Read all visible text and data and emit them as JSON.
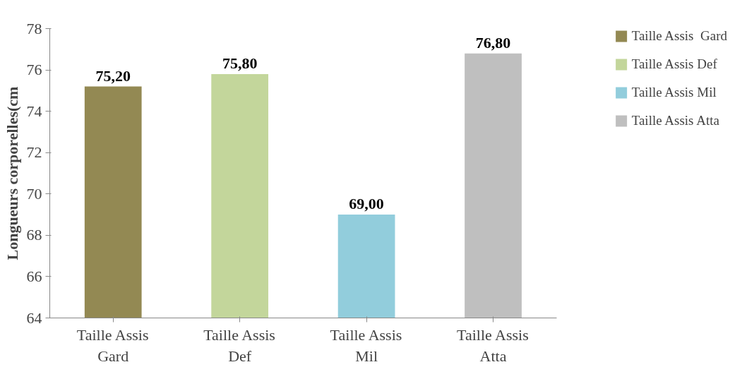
{
  "chart_data": {
    "type": "bar",
    "ylabel": "Longueurs corporelles(cm",
    "categories": [
      "Taille Assis Gard",
      "Taille Assis Def",
      "Taille Assis Mil",
      "Taille Assis Atta"
    ],
    "series": [
      {
        "name": "Taille Assis  Gard",
        "color": "#938953",
        "values": [
          75.2,
          null,
          null,
          null
        ]
      },
      {
        "name": "Taille Assis Def",
        "color": "#c3d69b",
        "values": [
          null,
          75.8,
          null,
          null
        ]
      },
      {
        "name": "Taille Assis Mil",
        "color": "#92cddc",
        "values": [
          null,
          null,
          69.0,
          null
        ]
      },
      {
        "name": "Taille Assis Atta",
        "color": "#bfbfbf",
        "values": [
          null,
          null,
          null,
          76.8
        ]
      }
    ],
    "value_labels": [
      "75,20",
      "75,80",
      "69,00",
      "76,80"
    ],
    "ylim": [
      64,
      78
    ],
    "yticks": [
      64,
      66,
      68,
      70,
      72,
      74,
      76,
      78
    ],
    "grid": false,
    "legend": "top right"
  }
}
